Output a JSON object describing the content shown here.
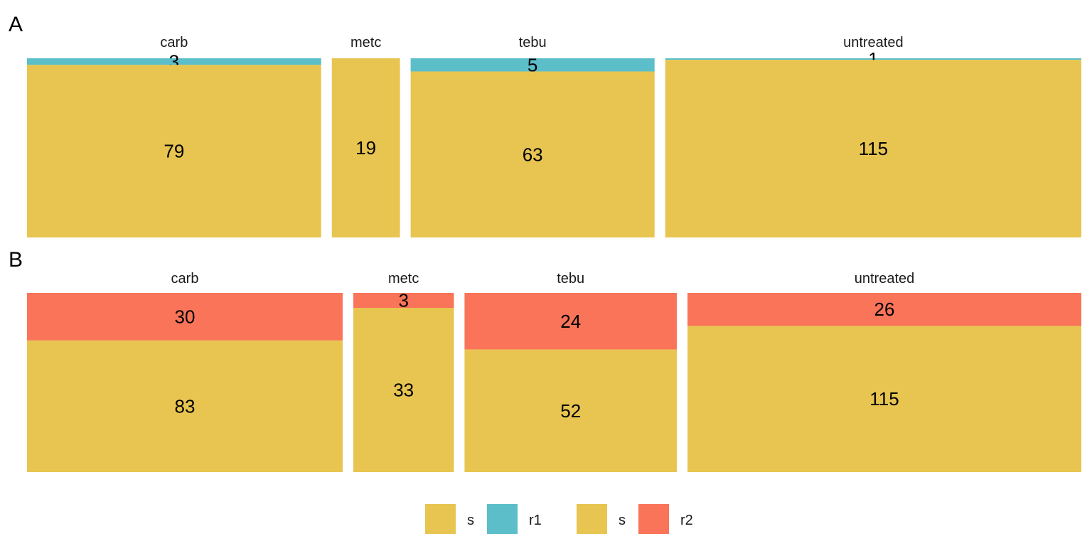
{
  "colors": {
    "s": "#E8C551",
    "r1": "#5BBEC9",
    "r2": "#F97458"
  },
  "chart_data": [
    {
      "type": "bar",
      "panel_label": "A",
      "categories": [
        "carb",
        "metc",
        "tebu",
        "untreated"
      ],
      "series": [
        {
          "name": "s",
          "values": [
            79,
            19,
            63,
            115
          ]
        },
        {
          "name": "r1",
          "values": [
            3,
            0,
            5,
            1
          ]
        }
      ]
    },
    {
      "type": "bar",
      "panel_label": "B",
      "categories": [
        "carb",
        "metc",
        "tebu",
        "untreated"
      ],
      "series": [
        {
          "name": "s",
          "values": [
            83,
            33,
            52,
            115
          ]
        },
        {
          "name": "r2",
          "values": [
            30,
            3,
            24,
            26
          ]
        }
      ]
    }
  ],
  "legend": [
    {
      "label": "s",
      "color": "#E8C551"
    },
    {
      "label": "r1",
      "color": "#5BBEC9"
    },
    {
      "label": "s",
      "color": "#E8C551"
    },
    {
      "label": "r2",
      "color": "#F97458"
    }
  ]
}
